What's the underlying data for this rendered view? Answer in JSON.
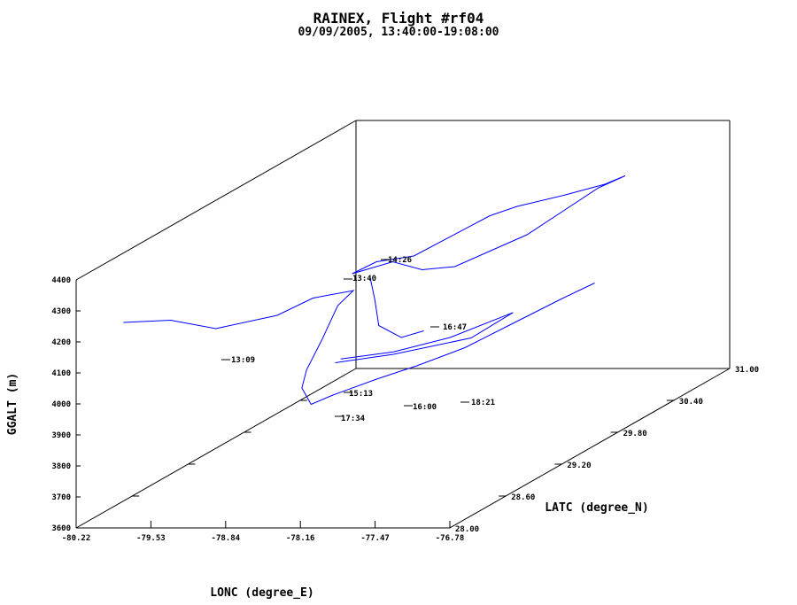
{
  "chart_data": {
    "type": "line",
    "title": "RAINEX, Flight #rf04",
    "subtitle": "09/09/2005, 13:40:00-19:08:00",
    "xlabel": "LONC (degree_E)",
    "ylabel": "LATC (degree_N)",
    "zlabel": "GGALT (m)",
    "xlim": [
      -80.22,
      -76.78
    ],
    "ylim": [
      28.0,
      31.0
    ],
    "zlim": [
      3600,
      4400
    ],
    "x_ticks": [
      "-80.22",
      "-79.53",
      "-78.84",
      "-78.16",
      "-77.47",
      "-76.78"
    ],
    "y_ticks": [
      "28.00",
      "28.60",
      "29.20",
      "29.80",
      "30.40",
      "31.00"
    ],
    "z_ticks": [
      "3600",
      "3700",
      "3800",
      "3900",
      "4000",
      "4100",
      "4200",
      "4300",
      "4400"
    ],
    "series_color": "#0000ff",
    "annotations": [
      {
        "label": "13:40"
      },
      {
        "label": "14:26"
      },
      {
        "label": "16:47"
      },
      {
        "label": "13:09"
      },
      {
        "label": "15:13"
      },
      {
        "label": "16:00"
      },
      {
        "label": "17:34"
      },
      {
        "label": "18:21"
      }
    ],
    "series": [
      {
        "points": [
          [
            -78.3,
            30.2,
            4230
          ],
          [
            -78.05,
            30.2,
            4260
          ],
          [
            -77.75,
            30.35,
            4270
          ],
          [
            -77.5,
            30.5,
            4280
          ],
          [
            -77.4,
            30.6,
            4290
          ],
          [
            -77.3,
            30.2,
            4320
          ],
          [
            -77.1,
            29.2,
            4340
          ],
          [
            -77.25,
            28.6,
            4340
          ],
          [
            -77.55,
            28.6,
            4330
          ],
          [
            -77.95,
            28.75,
            4330
          ],
          [
            -78.28,
            28.7,
            4300
          ],
          [
            -78.4,
            29.1,
            4270
          ],
          [
            -78.4,
            29.5,
            4220
          ],
          [
            -78.3,
            30.2,
            4230
          ]
        ]
      },
      {
        "points": [
          [
            -77.9,
            28.45,
            4330
          ],
          [
            -77.9,
            28.5,
            4250
          ],
          [
            -77.95,
            28.6,
            4150
          ],
          [
            -78.0,
            28.9,
            4060
          ],
          [
            -78.05,
            29.2,
            4030
          ]
        ]
      },
      {
        "points": [
          [
            -78.35,
            28.6,
            4030
          ],
          [
            -77.9,
            28.7,
            4040
          ],
          [
            -77.4,
            28.95,
            4050
          ],
          [
            -77.4,
            29.4,
            4055
          ],
          [
            -77.55,
            28.9,
            4060
          ],
          [
            -77.9,
            28.7,
            4048
          ],
          [
            -78.3,
            28.6,
            4042
          ]
        ]
      },
      {
        "points": [
          [
            -80.0,
            28.25,
            4220
          ],
          [
            -79.65,
            28.35,
            4210
          ],
          [
            -79.45,
            28.6,
            4140
          ],
          [
            -79.4,
            29.2,
            4080
          ],
          [
            -79.5,
            29.7,
            4050
          ],
          [
            -79.3,
            29.9,
            4040
          ],
          [
            -79.1,
            29.5,
            4060
          ],
          [
            -78.9,
            29.1,
            4020
          ],
          [
            -78.7,
            28.7,
            3990
          ],
          [
            -78.4,
            28.3,
            4000
          ],
          [
            -78.1,
            28.05,
            3990
          ],
          [
            -77.9,
            28.05,
            4020
          ],
          [
            -77.7,
            28.3,
            4030
          ],
          [
            -77.6,
            28.6,
            4020
          ],
          [
            -77.5,
            29.0,
            4010
          ],
          [
            -77.4,
            29.4,
            4020
          ],
          [
            -77.3,
            29.8,
            4030
          ],
          [
            -77.25,
            30.1,
            4030
          ]
        ]
      }
    ]
  }
}
